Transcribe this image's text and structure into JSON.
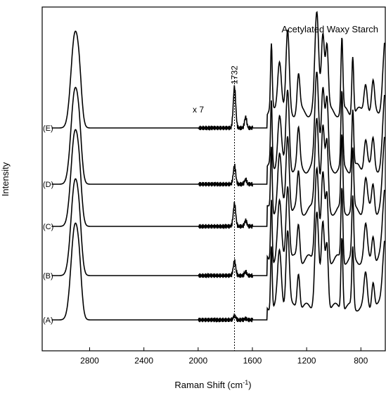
{
  "chart_data": {
    "type": "line",
    "title": "Acetylated Waxy Starch",
    "xlabel": "Raman Shift (cm",
    "xlabel_sup": "-1",
    "xlabel_end": ")",
    "ylabel": "Intensity",
    "xlim": [
      3150,
      620
    ],
    "x_reversed": true,
    "x_ticks": [
      2800,
      2400,
      2000,
      1600,
      1200,
      800
    ],
    "y_ticks": [],
    "grid": false,
    "legend": "none",
    "annotations": {
      "marker_label": "1732",
      "marker_x": 1732,
      "scale_label": "x 7"
    },
    "series": [
      {
        "name": "(A)"
      },
      {
        "name": "(B)"
      },
      {
        "name": "(C)"
      },
      {
        "name": "(D)"
      },
      {
        "name": "(E)"
      }
    ]
  }
}
